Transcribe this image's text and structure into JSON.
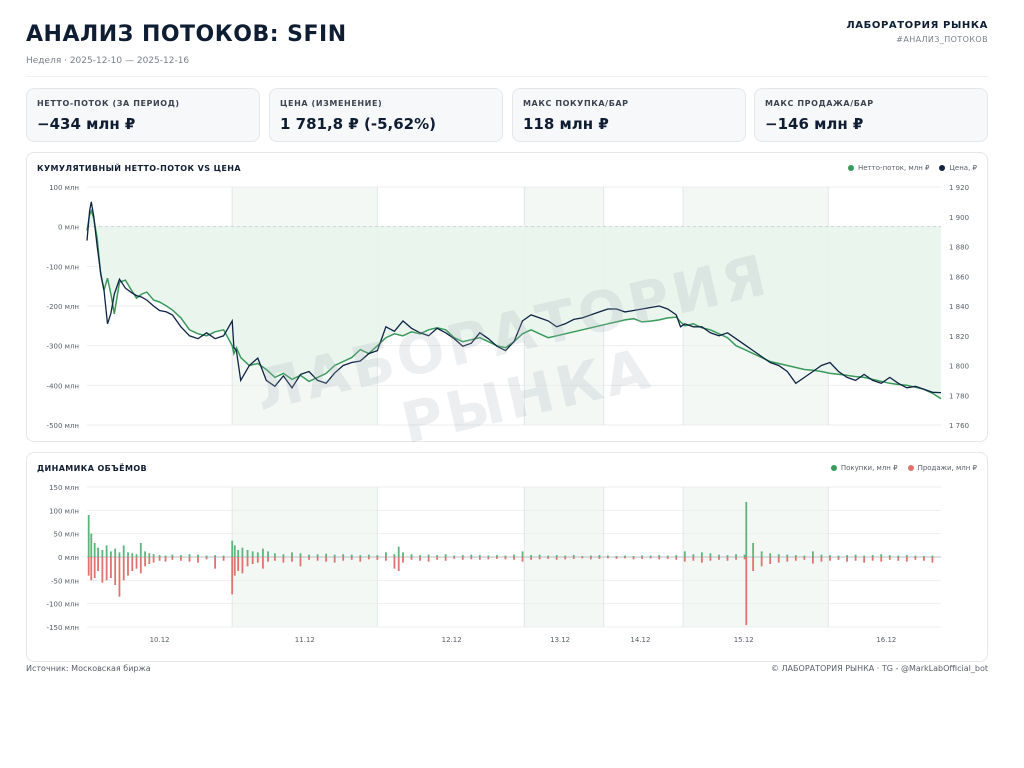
{
  "header": {
    "title": "АНАЛИЗ ПОТОКОВ: SFIN",
    "subtitle": "Неделя · 2025-12-10 — 2025-12-16",
    "brand": "ЛАБОРАТОРИЯ РЫНКА",
    "tag": "#АНАЛИЗ_ПОТОКОВ"
  },
  "cards": [
    {
      "label": "НЕТТО-ПОТОК (ЗА ПЕРИОД)",
      "value": "−434 млн ₽"
    },
    {
      "label": "ЦЕНА (ИЗМЕНЕНИЕ)",
      "value": "1 781,8 ₽ (-5,62%)"
    },
    {
      "label": "МАКС ПОКУПКА/БАР",
      "value": "118 млн ₽"
    },
    {
      "label": "МАКС ПРОДАЖА/БАР",
      "value": "−146 млн ₽"
    }
  ],
  "cum_panel": {
    "title": "КУМУЛЯТИВНЫЙ НЕТТО-ПОТОК VS ЦЕНА",
    "legend_net": "Нетто-поток, млн ₽",
    "legend_price": "Цена, ₽"
  },
  "vol_panel": {
    "title": "ДИНАМИКА ОБЪЁМОВ",
    "legend_buy": "Покупки, млн ₽",
    "legend_sell": "Продажи, млн ₽"
  },
  "footer": {
    "source": "Источник: Московская биржа",
    "copyright": "© ЛАБОРАТОРИЯ РЫНКА · TG - @MarkLabOfficial_bot"
  },
  "watermark": "ЛАБОРАТОРИЯ РЫНКА",
  "colors": {
    "net": "#3a9a5c",
    "price": "#0f2344",
    "buy": "#5cb57c",
    "sell": "#e0736f",
    "shade": "#e8f4ec"
  },
  "chart_data": [
    {
      "type": "line",
      "title": "КУМУЛЯТИВНЫЙ НЕТТО-ПОТОК VS ЦЕНА",
      "ylim_left": [
        -500,
        100
      ],
      "yticks_left": [
        100,
        0,
        -100,
        -200,
        -300,
        -400,
        -500
      ],
      "ytick_labels_left": [
        "100 млн",
        "0 млн",
        "-100 млн",
        "-200 млн",
        "-300 млн",
        "-400 млн",
        "-500 млн"
      ],
      "ylim_right": [
        1760,
        1920
      ],
      "yticks_right": [
        1920,
        1900,
        1880,
        1860,
        1840,
        1820,
        1800,
        1780,
        1760
      ],
      "ytick_labels_right": [
        "1 920",
        "1 900",
        "1 880",
        "1 860",
        "1 840",
        "1 820",
        "1 800",
        "1 780",
        "1 760"
      ],
      "x_range": [
        0,
        100
      ],
      "x_ticks": [
        {
          "label": "10.12",
          "x": 8.5
        },
        {
          "label": "11.12",
          "x": 25.5
        },
        {
          "label": "12.12",
          "x": 42.7
        },
        {
          "label": "13.12",
          "x": 55.4
        },
        {
          "label": "14.12",
          "x": 64.8
        },
        {
          "label": "15.12",
          "x": 76.9
        },
        {
          "label": "16.12",
          "x": 93.6
        }
      ],
      "shaded_x": [
        [
          17,
          34
        ],
        [
          51.2,
          60.5
        ],
        [
          69.8,
          86.8
        ]
      ],
      "series": [
        {
          "name": "Нетто-поток, млн ₽",
          "axis": "left",
          "x": [
            0,
            0.3,
            0.5,
            0.8,
            1.2,
            1.6,
            2.0,
            2.4,
            2.8,
            3.2,
            3.8,
            4.5,
            5.2,
            5.8,
            6.4,
            7.0,
            7.8,
            8.5,
            9.3,
            10,
            11,
            12,
            13,
            14,
            15,
            16,
            17,
            17.2,
            17.5,
            18,
            19,
            20,
            21,
            22,
            23,
            24,
            25,
            26,
            27,
            28,
            29,
            30,
            31,
            32,
            33,
            34,
            35,
            36,
            37,
            38,
            39,
            40,
            41,
            42,
            43,
            44,
            45,
            46,
            47,
            48,
            49,
            50,
            51,
            52,
            53,
            54,
            55,
            56,
            57,
            58,
            59,
            60,
            61,
            62,
            63,
            64,
            65,
            66,
            67,
            68,
            69,
            69.5,
            70,
            71,
            72,
            73,
            74,
            75,
            76,
            77,
            78,
            79,
            80,
            81,
            82,
            83,
            84,
            85,
            86,
            87,
            88,
            89,
            90,
            91,
            92,
            93,
            94,
            95,
            96,
            97,
            98,
            99,
            100
          ],
          "values": [
            -10,
            30,
            40,
            20,
            -30,
            -120,
            -160,
            -130,
            -170,
            -220,
            -140,
            -135,
            -160,
            -180,
            -170,
            -165,
            -185,
            -190,
            -200,
            -210,
            -230,
            -260,
            -270,
            -275,
            -265,
            -260,
            -300,
            -320,
            -305,
            -330,
            -350,
            -345,
            -360,
            -380,
            -370,
            -385,
            -375,
            -390,
            -380,
            -370,
            -350,
            -340,
            -330,
            -310,
            -320,
            -300,
            -280,
            -270,
            -275,
            -265,
            -270,
            -260,
            -255,
            -260,
            -280,
            -290,
            -285,
            -280,
            -290,
            -300,
            -305,
            -290,
            -270,
            -260,
            -270,
            -280,
            -275,
            -270,
            -265,
            -260,
            -255,
            -250,
            -245,
            -240,
            -235,
            -232,
            -240,
            -238,
            -235,
            -230,
            -228,
            -240,
            -250,
            -245,
            -255,
            -260,
            -270,
            -280,
            -300,
            -310,
            -320,
            -330,
            -340,
            -345,
            -350,
            -355,
            -360,
            -362,
            -365,
            -370,
            -372,
            -375,
            -378,
            -380,
            -385,
            -390,
            -395,
            -398,
            -400,
            -405,
            -410,
            -420,
            -434
          ]
        },
        {
          "name": "Цена, ₽",
          "axis": "right",
          "x": [
            0,
            0.3,
            0.5,
            0.8,
            1.2,
            1.6,
            2.0,
            2.4,
            2.8,
            3.2,
            3.8,
            4.5,
            5.2,
            5.8,
            6.4,
            7.0,
            7.8,
            8.5,
            9.3,
            10,
            11,
            12,
            13,
            14,
            15,
            16,
            17,
            17.2,
            17.5,
            18,
            19,
            20,
            21,
            22,
            23,
            24,
            25,
            26,
            27,
            28,
            29,
            30,
            31,
            32,
            33,
            34,
            35,
            36,
            37,
            38,
            39,
            40,
            41,
            42,
            43,
            44,
            45,
            46,
            47,
            48,
            49,
            50,
            51,
            52,
            53,
            54,
            55,
            56,
            57,
            58,
            59,
            60,
            61,
            62,
            63,
            64,
            65,
            66,
            67,
            68,
            69,
            69.5,
            70,
            71,
            72,
            73,
            74,
            75,
            76,
            77,
            78,
            79,
            80,
            81,
            82,
            83,
            84,
            85,
            86,
            87,
            88,
            89,
            90,
            91,
            92,
            93,
            94,
            95,
            96,
            97,
            98,
            99,
            100
          ],
          "values": [
            1884,
            1904,
            1910,
            1900,
            1880,
            1862,
            1850,
            1828,
            1835,
            1848,
            1858,
            1852,
            1849,
            1847,
            1846,
            1844,
            1840,
            1837,
            1836,
            1834,
            1826,
            1820,
            1818,
            1822,
            1818,
            1820,
            1830,
            1812,
            1810,
            1790,
            1800,
            1805,
            1790,
            1786,
            1793,
            1785,
            1794,
            1796,
            1790,
            1788,
            1795,
            1800,
            1802,
            1803,
            1808,
            1810,
            1826,
            1823,
            1830,
            1825,
            1822,
            1820,
            1825,
            1822,
            1818,
            1813,
            1815,
            1822,
            1818,
            1813,
            1810,
            1816,
            1830,
            1834,
            1832,
            1830,
            1826,
            1828,
            1831,
            1832,
            1834,
            1836,
            1838,
            1838,
            1836,
            1837,
            1838,
            1839,
            1840,
            1838,
            1834,
            1826,
            1828,
            1826,
            1826,
            1822,
            1820,
            1822,
            1818,
            1814,
            1810,
            1806,
            1802,
            1800,
            1796,
            1788,
            1792,
            1796,
            1800,
            1802,
            1796,
            1792,
            1790,
            1794,
            1790,
            1788,
            1792,
            1788,
            1785,
            1786,
            1784,
            1782,
            1781.8
          ]
        }
      ]
    },
    {
      "type": "bar",
      "title": "ДИНАМИКА ОБЪЁМОВ",
      "ylim": [
        -150,
        150
      ],
      "yticks": [
        150,
        100,
        50,
        0,
        -50,
        -100,
        -150
      ],
      "ytick_labels": [
        "150 млн",
        "100 млн",
        "50 млн",
        "0 млн",
        "-50 млн",
        "-100 млн",
        "-150 млн"
      ],
      "x_range": [
        0,
        100
      ],
      "shaded_x": [
        [
          17,
          34
        ],
        [
          51.2,
          60.5
        ],
        [
          69.8,
          86.8
        ]
      ],
      "series": [
        {
          "name": "Покупки, млн ₽",
          "x": [
            0.2,
            0.5,
            0.9,
            1.3,
            1.8,
            2.3,
            2.8,
            3.3,
            3.8,
            4.3,
            4.8,
            5.3,
            5.8,
            6.3,
            6.8,
            7.3,
            7.8,
            8.5,
            9.2,
            10,
            11,
            12,
            13,
            14,
            15,
            16,
            17,
            17.3,
            17.7,
            18.2,
            18.8,
            19.4,
            20,
            20.6,
            21.2,
            22,
            23,
            24,
            25,
            26,
            27,
            28,
            29,
            30,
            31,
            32,
            33,
            34,
            35,
            36,
            36.5,
            37,
            38,
            39,
            40,
            41,
            42,
            43,
            44,
            45,
            46,
            47,
            48,
            49,
            50,
            51,
            52,
            53,
            54,
            55,
            56,
            57,
            58,
            59,
            60,
            61,
            62,
            63,
            64,
            65,
            66,
            67,
            68,
            69,
            70,
            71,
            72,
            73,
            74,
            75,
            76,
            77,
            77.2,
            78,
            79,
            80,
            81,
            82,
            83,
            84,
            85,
            86,
            87,
            88,
            89,
            90,
            91,
            92,
            93,
            94,
            95,
            96,
            97,
            98,
            99
          ],
          "values": [
            90,
            50,
            30,
            20,
            15,
            25,
            12,
            18,
            10,
            25,
            10,
            8,
            6,
            30,
            12,
            8,
            6,
            4,
            3,
            5,
            4,
            6,
            5,
            3,
            4,
            3,
            35,
            25,
            15,
            20,
            15,
            12,
            10,
            18,
            12,
            8,
            6,
            10,
            8,
            5,
            6,
            7,
            5,
            6,
            5,
            4,
            5,
            4,
            10,
            6,
            22,
            10,
            6,
            4,
            5,
            4,
            6,
            3,
            4,
            5,
            4,
            3,
            4,
            3,
            5,
            12,
            4,
            5,
            3,
            4,
            3,
            4,
            2,
            3,
            4,
            3,
            2,
            3,
            2,
            3,
            3,
            4,
            3,
            4,
            12,
            6,
            10,
            8,
            5,
            4,
            6,
            5,
            118,
            30,
            12,
            8,
            6,
            5,
            4,
            3,
            12,
            5,
            4,
            3,
            4,
            5,
            3,
            4,
            6,
            4,
            3,
            4,
            3,
            2,
            3
          ]
        },
        {
          "name": "Продажи, млн ₽",
          "x": [
            0.2,
            0.5,
            0.9,
            1.3,
            1.8,
            2.3,
            2.8,
            3.3,
            3.8,
            4.3,
            4.8,
            5.3,
            5.8,
            6.3,
            6.8,
            7.3,
            7.8,
            8.5,
            9.2,
            10,
            11,
            12,
            13,
            14,
            15,
            16,
            17,
            17.3,
            17.7,
            18.2,
            18.8,
            19.4,
            20,
            20.6,
            21.2,
            22,
            23,
            24,
            25,
            26,
            27,
            28,
            29,
            30,
            31,
            32,
            33,
            34,
            35,
            36,
            36.5,
            37,
            38,
            39,
            40,
            41,
            42,
            43,
            44,
            45,
            46,
            47,
            48,
            49,
            50,
            51,
            52,
            53,
            54,
            55,
            56,
            57,
            58,
            59,
            60,
            61,
            62,
            63,
            64,
            65,
            66,
            67,
            68,
            69,
            70,
            71,
            72,
            73,
            74,
            75,
            76,
            77,
            77.2,
            78,
            79,
            80,
            81,
            82,
            83,
            84,
            85,
            86,
            87,
            88,
            89,
            90,
            91,
            92,
            93,
            94,
            95,
            96,
            97,
            98,
            99
          ],
          "values": [
            -40,
            -50,
            -45,
            -30,
            -55,
            -50,
            -45,
            -60,
            -85,
            -50,
            -40,
            -30,
            -25,
            -35,
            -20,
            -15,
            -12,
            -8,
            -10,
            -6,
            -8,
            -10,
            -12,
            -5,
            -25,
            -8,
            -80,
            -40,
            -30,
            -35,
            -20,
            -15,
            -12,
            -25,
            -10,
            -8,
            -12,
            -10,
            -20,
            -6,
            -8,
            -10,
            -12,
            -8,
            -6,
            -10,
            -5,
            -6,
            -8,
            -25,
            -30,
            -12,
            -6,
            -8,
            -10,
            -6,
            -8,
            -4,
            -6,
            -5,
            -6,
            -5,
            -4,
            -5,
            -6,
            -10,
            -6,
            -5,
            -4,
            -6,
            -5,
            -4,
            -3,
            -5,
            -4,
            -3,
            -4,
            -3,
            -5,
            -4,
            -3,
            -5,
            -4,
            -6,
            -10,
            -8,
            -12,
            -8,
            -6,
            -8,
            -6,
            -5,
            -146,
            -30,
            -20,
            -15,
            -12,
            -10,
            -8,
            -6,
            -14,
            -10,
            -8,
            -6,
            -10,
            -8,
            -12,
            -8,
            -10,
            -6,
            -8,
            -10,
            -6,
            -8,
            -12
          ]
        }
      ]
    }
  ]
}
